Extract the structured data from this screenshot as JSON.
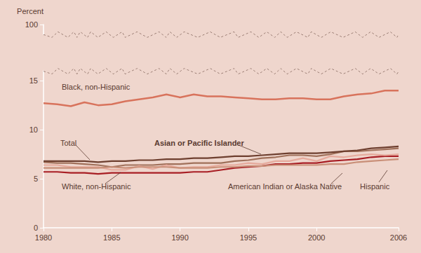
{
  "chart_data": {
    "type": "line",
    "y_label": "Percent",
    "x": [
      1980,
      1981,
      1982,
      1983,
      1984,
      1985,
      1986,
      1987,
      1988,
      1989,
      1990,
      1991,
      1992,
      1993,
      1994,
      1995,
      1996,
      1997,
      1998,
      1999,
      2000,
      2001,
      2002,
      2003,
      2004,
      2005,
      2006
    ],
    "xlim": [
      1980,
      2006
    ],
    "xticks": [
      1980,
      1985,
      1990,
      1995,
      2000,
      2006
    ],
    "ylim": [
      0,
      100
    ],
    "yticks": [
      0,
      5,
      10,
      15,
      100
    ],
    "grid": false,
    "series": [
      {
        "name": "Black, non-Hispanic",
        "color": "#d8735c",
        "values": [
          12.7,
          12.6,
          12.4,
          12.8,
          12.5,
          12.6,
          12.9,
          13.1,
          13.3,
          13.6,
          13.3,
          13.6,
          13.4,
          13.4,
          13.3,
          13.2,
          13.1,
          13.1,
          13.2,
          13.2,
          13.1,
          13.1,
          13.4,
          13.6,
          13.7,
          14.0,
          14.0
        ]
      },
      {
        "name": "Total",
        "color": "#6e3f2f",
        "values": [
          6.8,
          6.8,
          6.8,
          6.8,
          6.7,
          6.8,
          6.8,
          6.9,
          6.9,
          7.0,
          7.0,
          7.1,
          7.1,
          7.2,
          7.3,
          7.3,
          7.4,
          7.5,
          7.6,
          7.6,
          7.6,
          7.7,
          7.8,
          7.9,
          8.1,
          8.2,
          8.3
        ]
      },
      {
        "name": "Asian or Pacific Islander",
        "color": "#a0705a",
        "values": [
          6.7,
          6.6,
          6.6,
          6.5,
          6.4,
          6.2,
          6.4,
          6.4,
          6.4,
          6.5,
          6.5,
          6.6,
          6.6,
          6.6,
          6.8,
          6.9,
          7.1,
          7.2,
          7.4,
          7.4,
          7.3,
          7.5,
          7.8,
          7.8,
          7.9,
          8.0,
          8.1
        ]
      },
      {
        "name": "White, non-Hispanic",
        "color": "#a81e24",
        "values": [
          5.7,
          5.7,
          5.6,
          5.6,
          5.5,
          5.6,
          5.6,
          5.6,
          5.6,
          5.6,
          5.6,
          5.7,
          5.7,
          5.9,
          6.1,
          6.2,
          6.3,
          6.5,
          6.5,
          6.6,
          6.6,
          6.8,
          6.9,
          7.0,
          7.2,
          7.3,
          7.3
        ]
      },
      {
        "name": "American Indian or Alaska Native",
        "color": "#e6aa9c",
        "values": [
          6.4,
          6.4,
          6.2,
          6.2,
          6.2,
          5.9,
          5.9,
          6.3,
          6.0,
          6.4,
          6.1,
          6.2,
          6.2,
          6.4,
          6.4,
          6.6,
          6.5,
          6.8,
          6.8,
          7.1,
          6.8,
          7.3,
          7.2,
          7.4,
          7.5,
          7.4,
          7.5
        ]
      },
      {
        "name": "Hispanic",
        "color": "#c98f78",
        "values": [
          6.1,
          6.1,
          6.1,
          6.1,
          6.1,
          6.2,
          6.1,
          6.2,
          6.2,
          6.2,
          6.1,
          6.1,
          6.1,
          6.2,
          6.2,
          6.3,
          6.3,
          6.4,
          6.4,
          6.4,
          6.4,
          6.5,
          6.5,
          6.7,
          6.8,
          6.9,
          7.0
        ]
      }
    ]
  }
}
